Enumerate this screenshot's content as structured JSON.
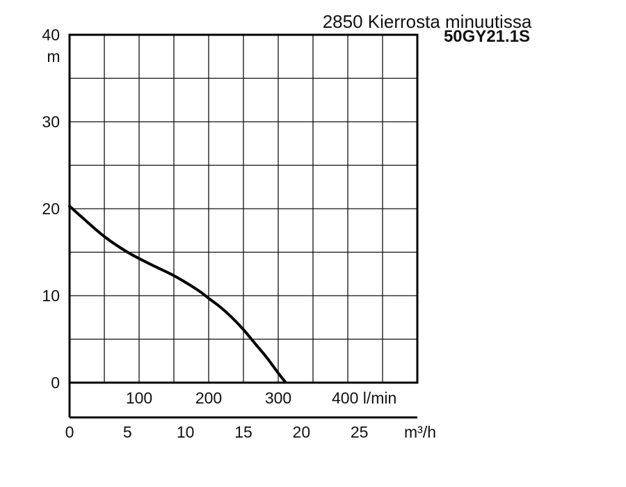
{
  "chart_data": {
    "type": "line",
    "title": "2850 Kierrosta minuutissa",
    "subtitle": "50GY21.1S",
    "ylabel": "m",
    "ylim": [
      0,
      40
    ],
    "yticks": [
      "0",
      "10",
      "20",
      "30",
      "40"
    ],
    "x_flow_lmin": {
      "label": "l/min",
      "ticks": [
        {
          "value": 100,
          "label": "100"
        },
        {
          "value": 200,
          "label": "200"
        },
        {
          "value": 300,
          "label": "300"
        },
        {
          "value": 400,
          "label": "400 l/min"
        }
      ]
    },
    "x_flow_m3h": {
      "label": "m³/h",
      "xlim": [
        0,
        30
      ],
      "ticks": [
        "0",
        "5",
        "10",
        "15",
        "20",
        "25"
      ]
    },
    "grid": true,
    "series": [
      {
        "x_unit": "m³/h",
        "x": [
          0,
          1,
          3,
          5,
          7,
          9,
          11,
          12,
          13,
          14,
          15,
          16,
          17,
          18,
          18.6
        ],
        "y": [
          20.3,
          19.1,
          16.8,
          15.0,
          13.6,
          12.3,
          10.7,
          9.7,
          8.7,
          7.5,
          6.1,
          4.5,
          2.9,
          1.1,
          0.1
        ]
      }
    ]
  }
}
